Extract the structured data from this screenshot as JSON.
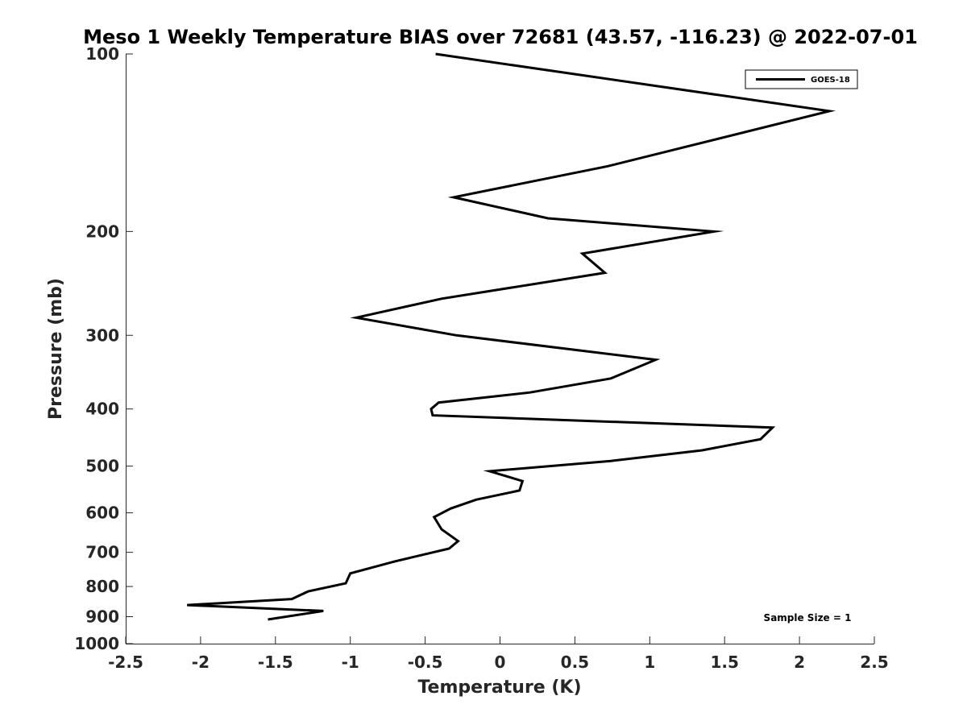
{
  "chart_data": {
    "type": "line",
    "title": "Meso 1 Weekly Temperature BIAS over 72681 (43.57, -116.23) @ 2022-07-01",
    "xlabel": "Temperature (K)",
    "ylabel": "Pressure (mb)",
    "xlim": [
      -2.5,
      2.5
    ],
    "ylim": [
      100,
      1000
    ],
    "yscale": "log",
    "yreversed": true,
    "grid": false,
    "xticks": [
      -2.5,
      -2,
      -1.5,
      -1,
      -0.5,
      0,
      0.5,
      1,
      1.5,
      2,
      2.5
    ],
    "xtick_labels": [
      "-2.5",
      "-2",
      "-1.5",
      "-1",
      "-0.5",
      "0",
      "0.5",
      "1",
      "1.5",
      "2",
      "2.5"
    ],
    "yticks": [
      100,
      200,
      300,
      400,
      500,
      600,
      700,
      800,
      900,
      1000
    ],
    "ytick_labels": [
      "100",
      "200",
      "300",
      "400",
      "500",
      "600",
      "700",
      "800",
      "900",
      "1000"
    ],
    "legend_position": "top-right",
    "series": [
      {
        "name": "GOES-18",
        "color": "#000000",
        "x": [
          -0.43,
          2.2,
          0.72,
          -0.31,
          0.32,
          1.43,
          0.55,
          0.7,
          -0.39,
          -0.96,
          -0.29,
          1.04,
          0.74,
          0.2,
          -0.41,
          -0.46,
          -0.45,
          1.82,
          1.74,
          1.35,
          0.74,
          -0.07,
          0.15,
          0.13,
          -0.16,
          -0.33,
          -0.44,
          -0.39,
          -0.28,
          -0.34,
          -0.7,
          -1.0,
          -1.03,
          -1.28,
          -1.39,
          -2.09,
          -1.18,
          -1.55
        ],
        "y": [
          100,
          125,
          155,
          175,
          190,
          200,
          218,
          235,
          260,
          280,
          300,
          330,
          355,
          375,
          390,
          400,
          410,
          430,
          450,
          470,
          490,
          510,
          530,
          550,
          570,
          590,
          610,
          640,
          670,
          690,
          725,
          760,
          790,
          815,
          840,
          860,
          880,
          910
        ]
      }
    ],
    "annotation": "Sample Size = 1"
  }
}
